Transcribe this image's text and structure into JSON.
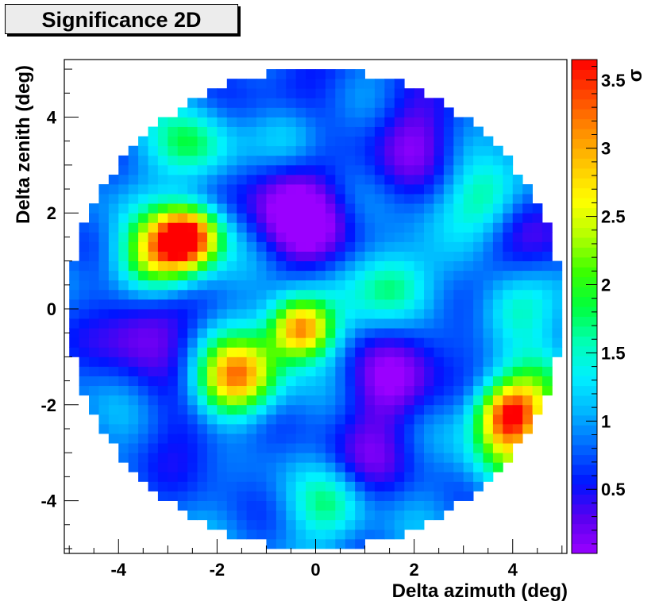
{
  "chart_data": {
    "type": "heatmap",
    "title": "Significance 2D",
    "xlabel": "Delta azimuth (deg)",
    "ylabel": "Delta zenith (deg)",
    "xlim": [
      -5.1,
      5.1
    ],
    "ylim": [
      -5.1,
      5.2
    ],
    "x_ticks": [
      "-4",
      "-2",
      "0",
      "2",
      "4"
    ],
    "x_tick_values": [
      -4,
      -2,
      0,
      2,
      4
    ],
    "y_ticks": [
      "4",
      "2",
      "0",
      "-2",
      "-4"
    ],
    "y_tick_values": [
      4,
      2,
      0,
      -2,
      -4
    ],
    "colorbar": {
      "label": "σ",
      "range": [
        0.03,
        3.65
      ],
      "tick_labels": [
        "3.5",
        "3",
        "2.5",
        "2",
        "1.5",
        "1",
        "0.5"
      ],
      "tick_values": [
        3.5,
        3.0,
        2.5,
        2.0,
        1.5,
        1.0,
        0.5
      ],
      "palette": [
        "#9a00ff",
        "#5a00f0",
        "#0014ff",
        "#0064ff",
        "#00b4ff",
        "#00f0ff",
        "#00ffb4",
        "#00ff3c",
        "#3cff00",
        "#b4ff00",
        "#ffff00",
        "#ffc800",
        "#ff8c00",
        "#ff4600",
        "#ff0000"
      ]
    },
    "region": {
      "shape": "disk",
      "center": [
        0,
        0
      ],
      "radius": 5.0
    },
    "bin_size_deg": 0.2,
    "background_level": 0.9,
    "features": [
      {
        "label": "hotspot",
        "x": -2.6,
        "y": 1.5,
        "sigma": 3.55
      },
      {
        "label": "hotspot",
        "x": -0.3,
        "y": -0.4,
        "sigma": 3.35
      },
      {
        "label": "hotspot",
        "x": 3.9,
        "y": -2.2,
        "sigma": 3.05
      },
      {
        "label": "elevated",
        "x": -1.5,
        "y": -1.3,
        "sigma": 2.3
      },
      {
        "label": "elevated",
        "x": -3.2,
        "y": 1.1,
        "sigma": 2.6
      },
      {
        "label": "elevated",
        "x": 1.6,
        "y": 0.5,
        "sigma": 1.9
      },
      {
        "label": "elevated",
        "x": 3.5,
        "y": 2.3,
        "sigma": 1.8
      },
      {
        "label": "elevated",
        "x": -2.5,
        "y": 3.4,
        "sigma": 1.8
      },
      {
        "label": "elevated",
        "x": -0.5,
        "y": 3.6,
        "sigma": 1.7
      },
      {
        "label": "elevated",
        "x": 4.0,
        "y": 0.0,
        "sigma": 1.8
      },
      {
        "label": "elevated",
        "x": 3.9,
        "y": -3.0,
        "sigma": 1.9
      },
      {
        "label": "elevated",
        "x": -1.8,
        "y": -1.6,
        "sigma": 2.0
      },
      {
        "label": "elevated",
        "x": 0.3,
        "y": -4.1,
        "sigma": 1.7
      },
      {
        "label": "elevated",
        "x": 4.4,
        "y": -1.8,
        "sigma": 1.8
      },
      {
        "label": "deficit",
        "x": -3.5,
        "y": -0.4,
        "sigma": 0.05
      },
      {
        "label": "deficit",
        "x": -0.1,
        "y": 1.8,
        "sigma": 0.05
      },
      {
        "label": "deficit",
        "x": 1.5,
        "y": -1.6,
        "sigma": 0.15
      },
      {
        "label": "deficit",
        "x": 2.0,
        "y": 3.6,
        "sigma": 0.2
      },
      {
        "label": "deficit",
        "x": -0.8,
        "y": 2.7,
        "sigma": 0.3
      },
      {
        "label": "deficit",
        "x": 4.4,
        "y": 1.4,
        "sigma": 0.3
      },
      {
        "label": "deficit",
        "x": -2.3,
        "y": -2.6,
        "sigma": 0.4
      },
      {
        "label": "deficit",
        "x": 1.0,
        "y": -3.3,
        "sigma": 0.4
      },
      {
        "label": "deficit",
        "x": -0.5,
        "y": 4.6,
        "sigma": 0.4
      },
      {
        "label": "deficit",
        "x": 2.8,
        "y": -0.4,
        "sigma": 0.5
      }
    ]
  }
}
